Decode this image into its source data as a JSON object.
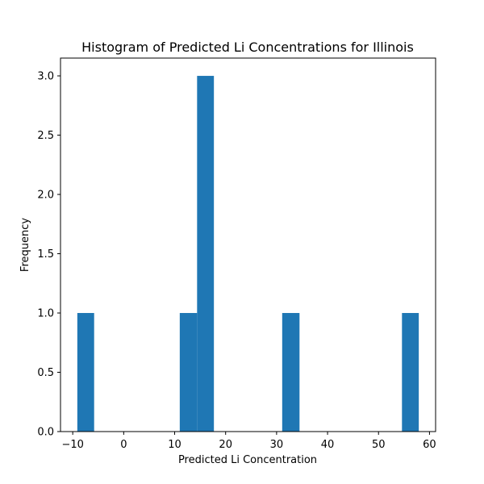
{
  "chart_data": {
    "type": "bar",
    "title": "Histogram of Predicted Li Concentrations for Illinois",
    "xlabel": "Predicted Li Concentration",
    "ylabel": "Frequency",
    "xlim": [
      -12.4,
      61.2
    ],
    "ylim": [
      0,
      3.15
    ],
    "xticks": [
      -10,
      0,
      10,
      20,
      30,
      40,
      50,
      60
    ],
    "yticks": [
      0.0,
      0.5,
      1.0,
      1.5,
      2.0,
      2.5,
      3.0
    ],
    "xtick_labels": [
      "−10",
      "0",
      "10",
      "20",
      "30",
      "40",
      "50",
      "60"
    ],
    "ytick_labels": [
      "0.0",
      "0.5",
      "1.0",
      "1.5",
      "2.0",
      "2.5",
      "3.0"
    ],
    "bins": [
      {
        "x0": -9.1,
        "x1": -5.8,
        "count": 1
      },
      {
        "x0": 11.0,
        "x1": 14.4,
        "count": 1
      },
      {
        "x0": 14.4,
        "x1": 17.7,
        "count": 3
      },
      {
        "x0": 31.1,
        "x1": 34.5,
        "count": 1
      },
      {
        "x0": 54.6,
        "x1": 57.9,
        "count": 1
      }
    ],
    "bar_color": "#1f77b4",
    "grid": false,
    "legend": "none"
  }
}
